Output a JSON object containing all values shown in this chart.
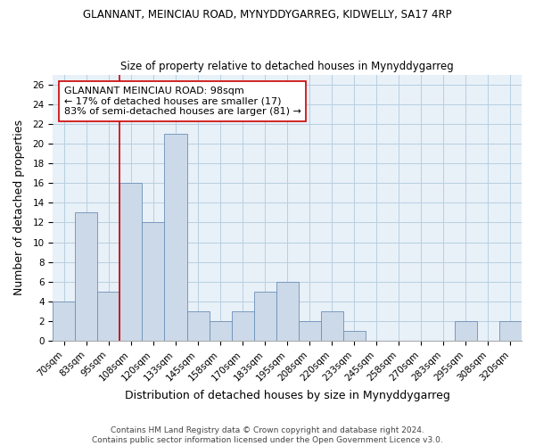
{
  "title": "GLANNANT, MEINCIAU ROAD, MYNYDDYGARREG, KIDWELLY, SA17 4RP",
  "subtitle": "Size of property relative to detached houses in Mynyddygarreg",
  "xlabel": "Distribution of detached houses by size in Mynyddygarreg",
  "ylabel": "Number of detached properties",
  "bins": [
    "70sqm",
    "83sqm",
    "95sqm",
    "108sqm",
    "120sqm",
    "133sqm",
    "145sqm",
    "158sqm",
    "170sqm",
    "183sqm",
    "195sqm",
    "208sqm",
    "220sqm",
    "233sqm",
    "245sqm",
    "258sqm",
    "270sqm",
    "283sqm",
    "295sqm",
    "308sqm",
    "320sqm"
  ],
  "values": [
    4,
    13,
    5,
    16,
    12,
    21,
    3,
    2,
    3,
    5,
    6,
    2,
    3,
    1,
    0,
    0,
    0,
    0,
    2,
    0,
    2
  ],
  "bar_color": "#ccd9e8",
  "bar_edge_color": "#6b90b8",
  "vline_x_index": 2.5,
  "vline_color": "#cc0000",
  "annotation_text": "GLANNANT MEINCIAU ROAD: 98sqm\n← 17% of detached houses are smaller (17)\n83% of semi-detached houses are larger (81) →",
  "annotation_box_color": "white",
  "annotation_box_edge_color": "#cc0000",
  "ylim": [
    0,
    27
  ],
  "yticks": [
    0,
    2,
    4,
    6,
    8,
    10,
    12,
    14,
    16,
    18,
    20,
    22,
    24,
    26
  ],
  "grid_color": "#b8cfe0",
  "bg_color": "#e8f0f8",
  "footer": "Contains HM Land Registry data © Crown copyright and database right 2024.\nContains public sector information licensed under the Open Government Licence v3.0.",
  "title_fontsize": 8.5,
  "subtitle_fontsize": 8.5,
  "xlabel_fontsize": 9,
  "ylabel_fontsize": 9,
  "tick_fontsize": 7.5,
  "annotation_fontsize": 8,
  "footer_fontsize": 6.5
}
